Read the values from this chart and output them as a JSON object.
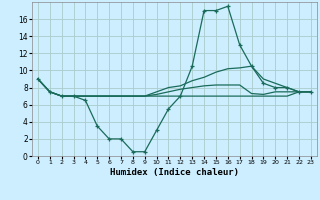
{
  "xlabel": "Humidex (Indice chaleur)",
  "background_color": "#cceeff",
  "grid_color": "#aacccc",
  "line_color": "#1a6b5a",
  "xlim": [
    -0.5,
    23.5
  ],
  "ylim": [
    0,
    18
  ],
  "xticks": [
    0,
    1,
    2,
    3,
    4,
    5,
    6,
    7,
    8,
    9,
    10,
    11,
    12,
    13,
    14,
    15,
    16,
    17,
    18,
    19,
    20,
    21,
    22,
    23
  ],
  "yticks": [
    0,
    2,
    4,
    6,
    8,
    10,
    12,
    14,
    16
  ],
  "lines": [
    {
      "x": [
        0,
        1,
        2,
        3,
        4,
        5,
        6,
        7,
        8,
        9,
        10,
        11,
        12,
        13,
        14,
        15,
        16,
        17,
        18,
        19,
        20,
        21,
        22,
        23
      ],
      "y": [
        9,
        7.5,
        7,
        7,
        6.5,
        3.5,
        2,
        2,
        0.5,
        0.5,
        3,
        5.5,
        7,
        10.5,
        17,
        17,
        17.5,
        13,
        10.5,
        8.5,
        8,
        8,
        7.5,
        7.5
      ],
      "marker": true
    },
    {
      "x": [
        0,
        1,
        2,
        3,
        4,
        5,
        6,
        7,
        8,
        9,
        10,
        11,
        12,
        13,
        14,
        15,
        16,
        17,
        18,
        19,
        20,
        21,
        22,
        23
      ],
      "y": [
        9,
        7.5,
        7,
        7,
        7,
        7,
        7,
        7,
        7,
        7,
        7.5,
        8,
        8.2,
        8.8,
        9.2,
        9.8,
        10.2,
        10.3,
        10.5,
        9,
        8.5,
        8,
        7.5,
        7.5
      ],
      "marker": false
    },
    {
      "x": [
        0,
        1,
        2,
        3,
        4,
        5,
        6,
        7,
        8,
        9,
        10,
        11,
        12,
        13,
        14,
        15,
        16,
        17,
        18,
        19,
        20,
        21,
        22,
        23
      ],
      "y": [
        9,
        7.5,
        7,
        7,
        7,
        7,
        7,
        7,
        7,
        7,
        7.2,
        7.5,
        7.8,
        8,
        8.2,
        8.3,
        8.3,
        8.3,
        7.3,
        7.2,
        7.5,
        7.5,
        7.5,
        7.5
      ],
      "marker": false
    },
    {
      "x": [
        0,
        1,
        2,
        3,
        4,
        5,
        6,
        7,
        8,
        9,
        10,
        11,
        12,
        13,
        14,
        15,
        16,
        17,
        18,
        19,
        20,
        21,
        22,
        23
      ],
      "y": [
        9,
        7.5,
        7,
        7,
        7,
        7,
        7,
        7,
        7,
        7,
        7,
        7,
        7,
        7,
        7,
        7,
        7,
        7,
        7,
        7,
        7,
        7,
        7.5,
        7.5
      ],
      "marker": false
    }
  ]
}
